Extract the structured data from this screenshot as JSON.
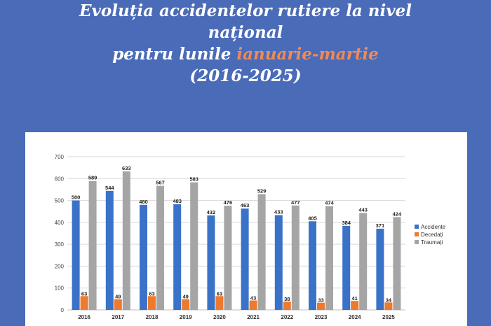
{
  "header": {
    "line1": "Evoluția accidentelor rutiere la nivel",
    "line2": "național",
    "line3_prefix": "pentru lunile ",
    "line3_accent": "ianuarie-martie",
    "line4": "(2016-2025)",
    "accent_color": "#f08a55"
  },
  "chart_data": {
    "type": "bar",
    "categories": [
      "2016",
      "2017",
      "2018",
      "2019",
      "2020",
      "2021",
      "2022",
      "2023",
      "2024",
      "2025"
    ],
    "series": [
      {
        "name": "Accidente",
        "color": "#3a72c8",
        "values": [
          500,
          544,
          480,
          483,
          432,
          463,
          433,
          405,
          384,
          371
        ]
      },
      {
        "name": "Decedați",
        "color": "#ee7a2e",
        "values": [
          63,
          49,
          63,
          49,
          63,
          43,
          38,
          33,
          41,
          34
        ]
      },
      {
        "name": "Traumați",
        "color": "#a5a5a5",
        "values": [
          589,
          633,
          567,
          583,
          476,
          529,
          477,
          474,
          443,
          424
        ]
      }
    ],
    "ylim": [
      0,
      700
    ],
    "yticks": [
      0,
      100,
      200,
      300,
      400,
      500,
      600,
      700
    ],
    "grid": true,
    "legend_position": "right"
  }
}
